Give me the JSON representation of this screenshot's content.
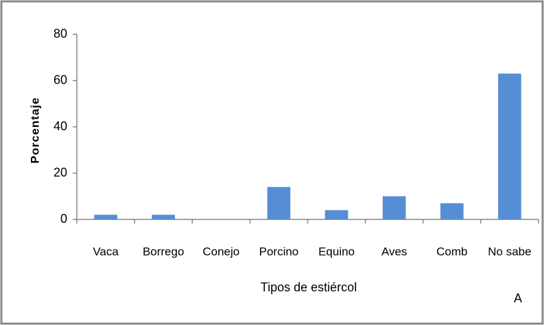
{
  "chart_data": {
    "type": "bar",
    "categories": [
      "Vaca",
      "Borrego",
      "Conejo",
      "Porcino",
      "Equino",
      "Aves",
      "Comb",
      "No sabe"
    ],
    "values": [
      2,
      2,
      0,
      14,
      4,
      10,
      7,
      63
    ],
    "color": "#558ed5",
    "ylim": [
      0,
      80
    ],
    "yticks": [
      0,
      20,
      40,
      60,
      80
    ],
    "x_label": "Tipos de estiércol",
    "y_label": "Porcentaje",
    "annotation": "A",
    "grid": false
  }
}
